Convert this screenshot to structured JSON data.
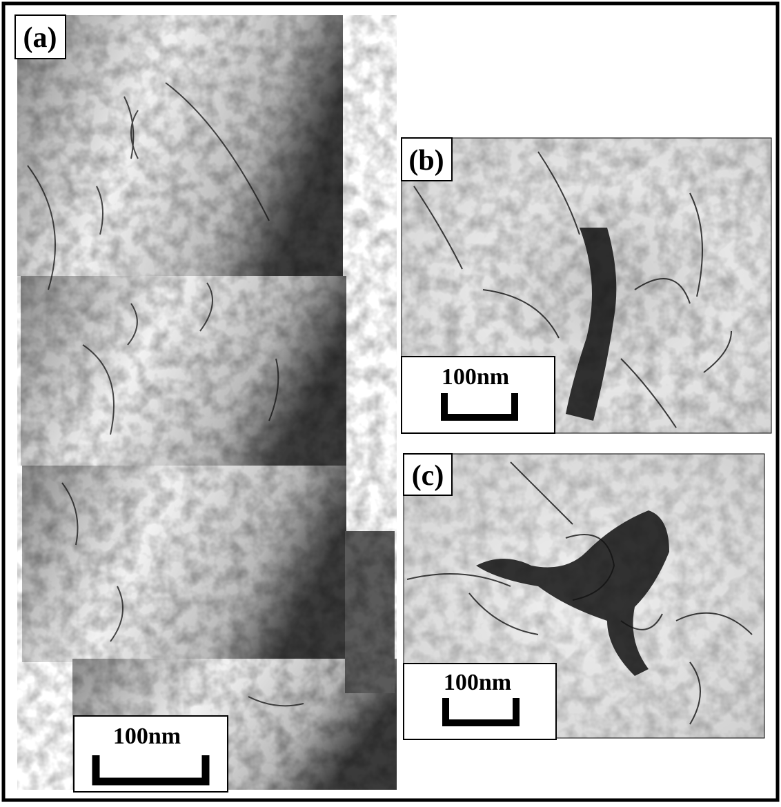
{
  "panels": [
    {
      "label": "(a)",
      "scale_bar": "100nm"
    },
    {
      "label": "(b)",
      "scale_bar": "100nm"
    },
    {
      "label": "(c)",
      "scale_bar": "100nm"
    }
  ]
}
